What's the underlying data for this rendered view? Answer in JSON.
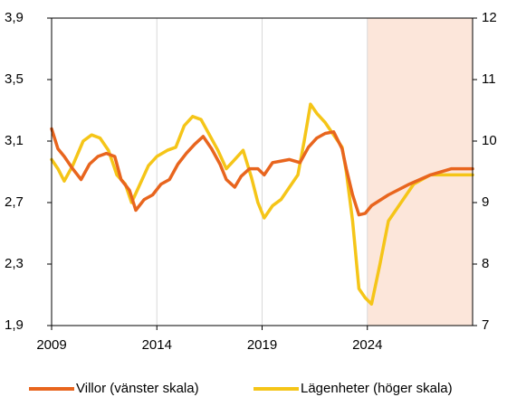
{
  "chart_data": {
    "type": "line",
    "xlim": [
      2009,
      2029
    ],
    "xticks": [
      2009,
      2014,
      2019,
      2024
    ],
    "ylim": [
      1.9,
      3.9
    ],
    "yticks": [
      {
        "value": 1.9,
        "label": "1,9"
      },
      {
        "value": 2.3,
        "label": "2,3"
      },
      {
        "value": 2.7,
        "label": "2,7"
      },
      {
        "value": 3.1,
        "label": "3,1"
      },
      {
        "value": 3.5,
        "label": "3,5"
      },
      {
        "value": 3.9,
        "label": "3,9"
      }
    ],
    "y2lim": [
      7,
      12
    ],
    "y2ticks": [
      7,
      8,
      9,
      10,
      11,
      12
    ],
    "grid": true,
    "grid_axis": "x",
    "shaded_region": {
      "x": [
        2024,
        2029
      ],
      "color": "#fce6da"
    },
    "legend": "bottom",
    "series": [
      {
        "name": "Villor (vänster skala)",
        "color": "#e8651e",
        "axis": "y",
        "x": [
          2009.0,
          2009.3,
          2009.6,
          2010.0,
          2010.4,
          2010.8,
          2011.2,
          2011.6,
          2012.0,
          2012.3,
          2012.7,
          2013.0,
          2013.4,
          2013.8,
          2014.2,
          2014.6,
          2015.0,
          2015.4,
          2015.8,
          2016.2,
          2016.6,
          2017.0,
          2017.3,
          2017.7,
          2018.0,
          2018.4,
          2018.8,
          2019.1,
          2019.5,
          2019.9,
          2020.3,
          2020.8,
          2021.2,
          2021.6,
          2022.0,
          2022.4,
          2022.8,
          2023.0,
          2023.3,
          2023.6,
          2023.9,
          2024.2,
          2025.0,
          2026.0,
          2027.0,
          2028.0,
          2029.0
        ],
        "values": [
          3.18,
          3.05,
          3.0,
          2.92,
          2.85,
          2.95,
          3.0,
          3.02,
          3.0,
          2.85,
          2.78,
          2.65,
          2.72,
          2.75,
          2.82,
          2.85,
          2.95,
          3.02,
          3.08,
          3.13,
          3.05,
          2.95,
          2.85,
          2.8,
          2.87,
          2.92,
          2.92,
          2.88,
          2.96,
          2.97,
          2.98,
          2.96,
          3.06,
          3.12,
          3.15,
          3.16,
          3.05,
          2.92,
          2.75,
          2.62,
          2.63,
          2.68,
          2.75,
          2.82,
          2.88,
          2.92,
          2.92
        ]
      },
      {
        "name": "Lägenheter (höger skala)",
        "color": "#f5c518",
        "axis": "y2",
        "x": [
          2009.0,
          2009.3,
          2009.6,
          2010.0,
          2010.5,
          2010.9,
          2011.3,
          2011.7,
          2012.1,
          2012.5,
          2012.8,
          2013.2,
          2013.6,
          2014.0,
          2014.5,
          2014.9,
          2015.3,
          2015.7,
          2016.1,
          2016.5,
          2016.9,
          2017.3,
          2017.7,
          2018.1,
          2018.5,
          2018.8,
          2019.1,
          2019.5,
          2019.9,
          2020.3,
          2020.7,
          2021.0,
          2021.3,
          2021.6,
          2022.0,
          2022.4,
          2022.8,
          2023.0,
          2023.3,
          2023.6,
          2023.9,
          2024.2,
          2024.6,
          2025.0,
          2025.6,
          2026.2,
          2027.0,
          2028.0,
          2029.0
        ],
        "values": [
          9.7,
          9.55,
          9.35,
          9.6,
          10.0,
          10.1,
          10.05,
          9.85,
          9.45,
          9.3,
          9.0,
          9.3,
          9.6,
          9.75,
          9.85,
          9.9,
          10.25,
          10.4,
          10.35,
          10.1,
          9.85,
          9.55,
          9.7,
          9.85,
          9.4,
          9.0,
          8.75,
          8.95,
          9.05,
          9.25,
          9.45,
          10.0,
          10.6,
          10.45,
          10.3,
          10.1,
          9.9,
          9.5,
          8.7,
          7.6,
          7.45,
          7.35,
          8.0,
          8.7,
          9.0,
          9.3,
          9.45,
          9.45,
          9.45
        ]
      }
    ]
  }
}
